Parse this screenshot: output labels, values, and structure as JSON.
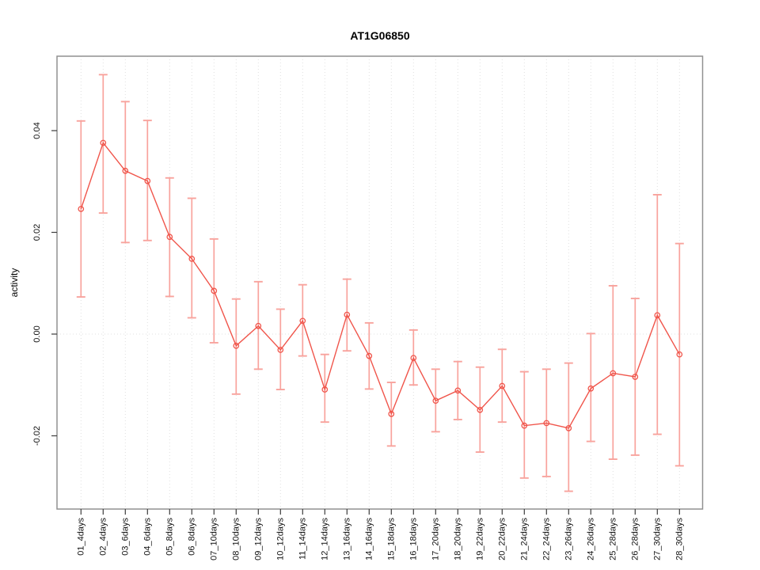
{
  "figure": {
    "title": "AT1G06850",
    "background": "#ffffff"
  },
  "chart_data": {
    "type": "line",
    "title": "AT1G06850",
    "xlabel": "",
    "ylabel": "activity",
    "legend": "none",
    "grid": "dotted vertical gridline at each category; dotted horizontal line at y=0",
    "marker": "open-circle",
    "error_bars": true,
    "ylim": [
      -0.0344,
      0.0546
    ],
    "yticks": [
      -0.02,
      0,
      0.02,
      0.04
    ],
    "ytick_labels": [
      "-0.02",
      "0.00",
      "0.02",
      "0.04"
    ],
    "categories": [
      "01_4days",
      "02_4days",
      "03_6days",
      "04_6days",
      "05_8days",
      "06_8days",
      "07_10days",
      "08_10days",
      "09_12days",
      "10_12days",
      "11_14days",
      "12_14days",
      "13_16days",
      "14_16days",
      "15_18days",
      "16_18days",
      "17_20days",
      "18_20days",
      "19_22days",
      "20_22days",
      "21_24days",
      "22_24days",
      "23_26days",
      "24_26days",
      "25_28days",
      "26_28days",
      "27_30days",
      "28_30days"
    ],
    "series": [
      {
        "name": "activity",
        "values": [
          0.0246,
          0.0376,
          0.0321,
          0.0301,
          0.0191,
          0.0148,
          0.0085,
          -0.0023,
          0.0016,
          -0.0031,
          0.0026,
          -0.0109,
          0.0038,
          -0.0043,
          -0.0157,
          -0.0047,
          -0.0131,
          -0.0111,
          -0.0149,
          -0.0102,
          -0.018,
          -0.0175,
          -0.0185,
          -0.0107,
          -0.0077,
          -0.0084,
          0.0037,
          -0.004
        ],
        "lower": [
          0.0073,
          0.0238,
          0.018,
          0.0184,
          0.0074,
          0.0032,
          -0.0017,
          -0.0118,
          -0.0069,
          -0.0109,
          -0.0043,
          -0.0173,
          -0.0033,
          -0.0108,
          -0.022,
          -0.01,
          -0.0192,
          -0.0168,
          -0.0232,
          -0.0173,
          -0.0283,
          -0.028,
          -0.0309,
          -0.0211,
          -0.0246,
          -0.0238,
          -0.0197,
          -0.0259
        ],
        "upper": [
          0.0419,
          0.051,
          0.0457,
          0.042,
          0.0307,
          0.0267,
          0.0187,
          0.0069,
          0.0103,
          0.0049,
          0.0097,
          -0.004,
          0.0108,
          0.0022,
          -0.0095,
          0.0008,
          -0.0069,
          -0.0054,
          -0.0065,
          -0.003,
          -0.0074,
          -0.0069,
          -0.0057,
          0.0001,
          0.0095,
          0.007,
          0.0274,
          0.0178
        ]
      }
    ],
    "colors": {
      "line": "#f0554b",
      "point": "#f0554b",
      "error_bar": "#f8a39d",
      "grid": "#e0e0e0",
      "box": "#919191",
      "tick": "#3d3d3d",
      "text": "#111111"
    }
  }
}
